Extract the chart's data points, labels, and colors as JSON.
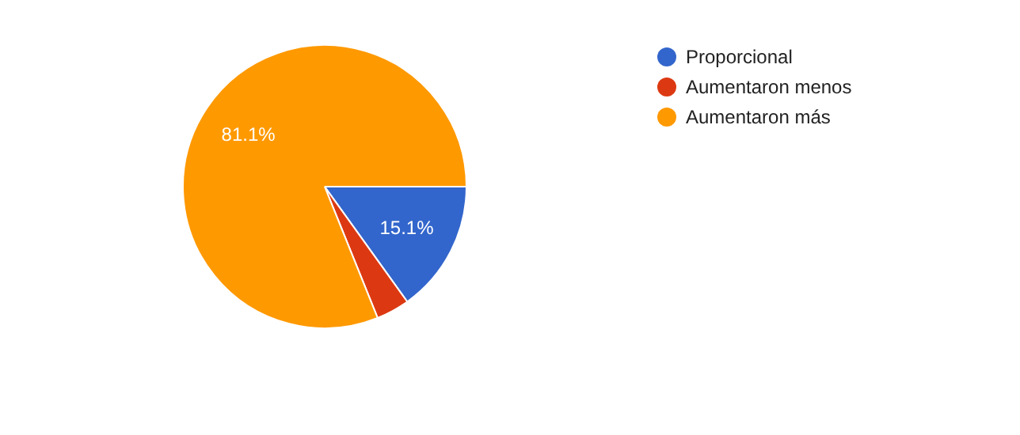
{
  "chart_data": {
    "type": "pie",
    "categories": [
      "Proporcional",
      "Aumentaron menos",
      "Aumentaron más"
    ],
    "values": [
      15.1,
      3.8,
      81.1
    ],
    "colors": [
      "#3366cc",
      "#dc3912",
      "#ff9900"
    ],
    "value_labels": [
      "15.1%",
      null,
      "81.1%"
    ],
    "legend": "top right"
  }
}
